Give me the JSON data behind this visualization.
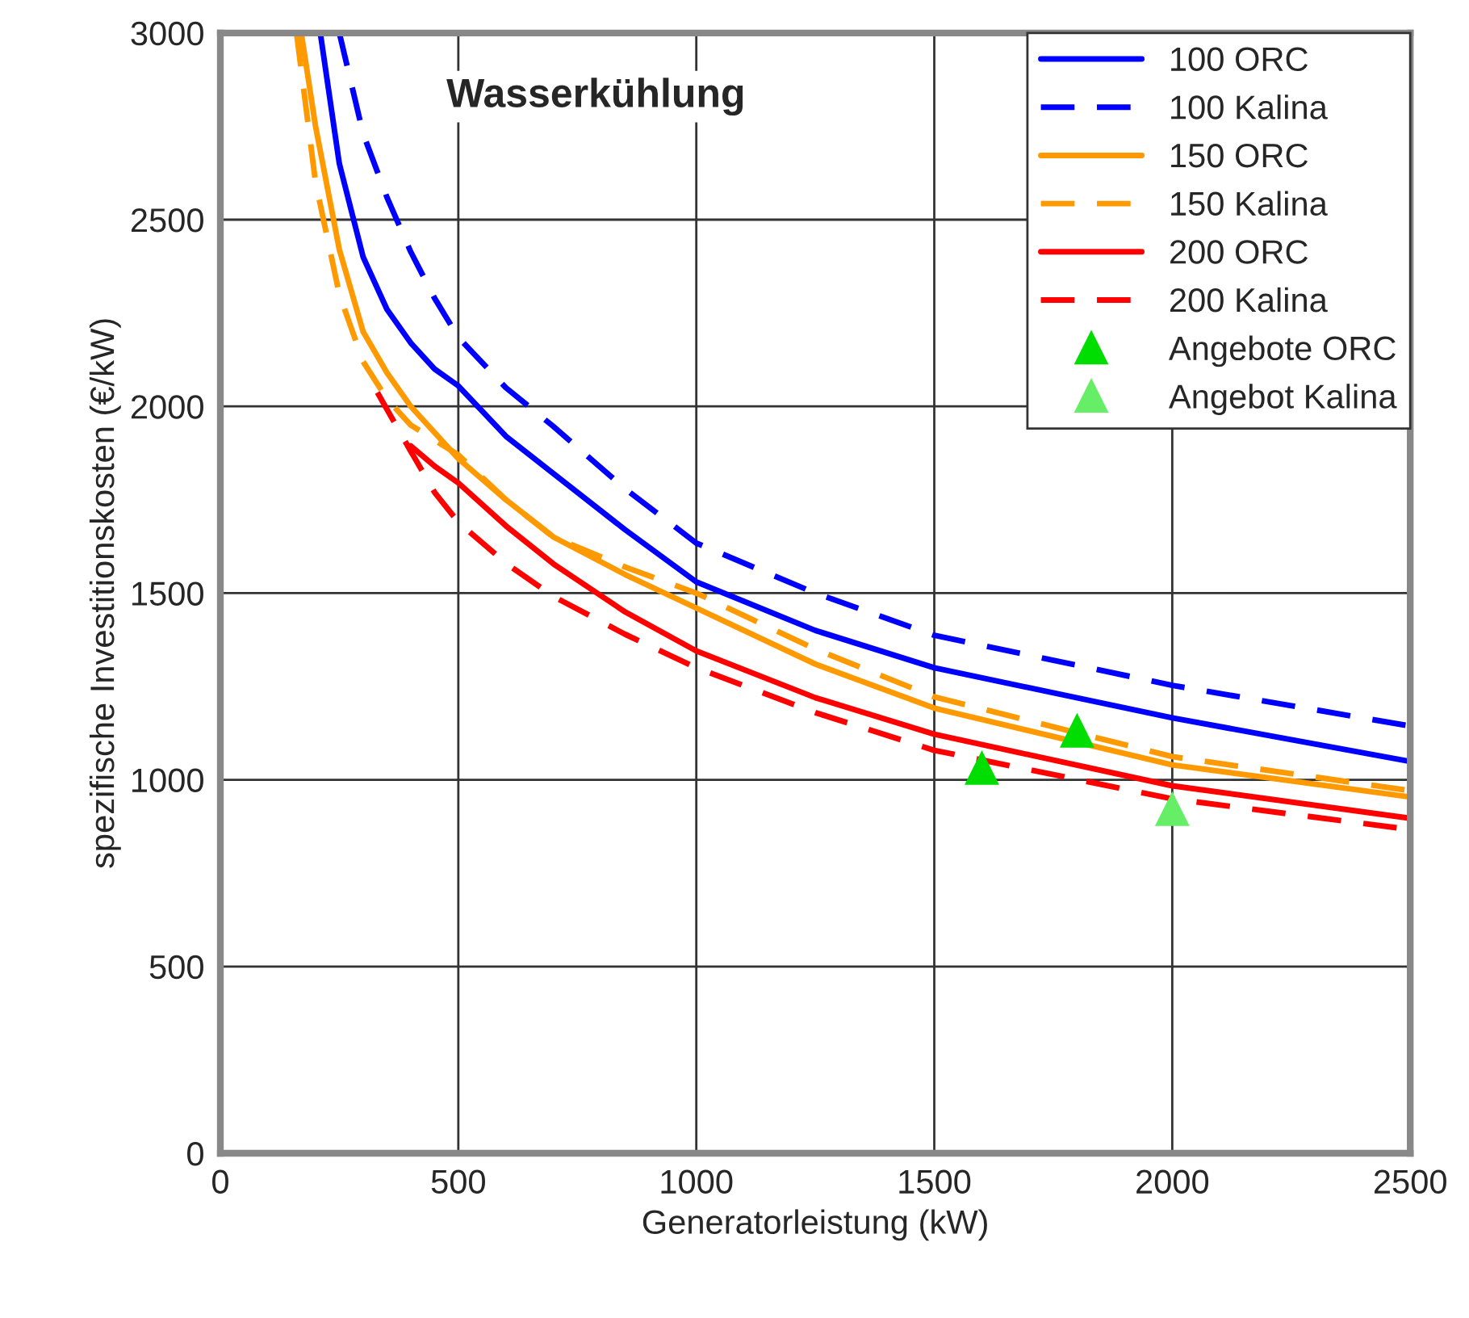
{
  "chart_data": {
    "type": "line",
    "xlabel": "Generatorleistung (kW)",
    "ylabel": "spezifische Investitionskosten (€/kW)",
    "annotations": [
      "Wasserkühlung"
    ],
    "xlim": [
      0,
      2500
    ],
    "ylim": [
      0,
      3000
    ],
    "xticks": [
      0,
      500,
      1000,
      1500,
      2000,
      2500
    ],
    "yticks": [
      0,
      500,
      1000,
      1500,
      2000,
      2500,
      3000
    ],
    "grid": true,
    "legend": "top right",
    "series": [
      {
        "name": "100 ORC",
        "color": "#0000ff",
        "line_style": "solid",
        "x": [
          210,
          250,
          300,
          350,
          400,
          450,
          500,
          600,
          700,
          850,
          1000,
          1250,
          1500,
          2000,
          2500
        ],
        "values": [
          3000,
          2650,
          2400,
          2260,
          2170,
          2100,
          2055,
          1920,
          1820,
          1670,
          1530,
          1400,
          1300,
          1166,
          1049
        ]
      },
      {
        "name": "100 Kalina",
        "color": "#0000ff",
        "line_style": "dashed",
        "x": [
          250,
          300,
          350,
          400,
          450,
          500,
          600,
          700,
          850,
          1000,
          1250,
          1500,
          2000,
          2500
        ],
        "values": [
          3000,
          2730,
          2560,
          2414,
          2290,
          2185,
          2050,
          1946,
          1780,
          1634,
          1500,
          1387,
          1253,
          1144
        ]
      },
      {
        "name": "150 ORC",
        "color": "#ff9900",
        "line_style": "solid",
        "x": [
          170,
          200,
          250,
          300,
          350,
          400,
          500,
          600,
          700,
          850,
          1000,
          1250,
          1500,
          2000,
          2500
        ],
        "values": [
          3000,
          2750,
          2420,
          2200,
          2090,
          2000,
          1860,
          1750,
          1650,
          1550,
          1460,
          1310,
          1192,
          1040,
          954
        ]
      },
      {
        "name": "150 Kalina",
        "color": "#ff9900",
        "line_style": "dashed",
        "x": [
          160,
          200,
          250,
          300,
          350,
          400,
          500,
          600,
          700,
          850,
          1000,
          1250,
          1500,
          2000,
          2500
        ],
        "values": [
          3000,
          2600,
          2300,
          2120,
          2020,
          1950,
          1870,
          1750,
          1650,
          1570,
          1500,
          1350,
          1222,
          1062,
          971
        ]
      },
      {
        "name": "200 ORC",
        "color": "#ff0000",
        "line_style": "solid",
        "x": [
          400,
          450,
          500,
          600,
          700,
          850,
          1000,
          1250,
          1500,
          2000,
          2500
        ],
        "values": [
          1894,
          1840,
          1795,
          1680,
          1578,
          1450,
          1345,
          1220,
          1122,
          984,
          897
        ]
      },
      {
        "name": "200 Kalina",
        "color": "#ff0000",
        "line_style": "dashed",
        "x": [
          330,
          400,
          450,
          500,
          600,
          700,
          850,
          1000,
          1250,
          1500,
          2000,
          2500
        ],
        "values": [
          2037,
          1880,
          1770,
          1690,
          1580,
          1491,
          1390,
          1300,
          1180,
          1079,
          949,
          867
        ]
      },
      {
        "name": "Angebote ORC",
        "type": "scatter",
        "marker": "triangle",
        "color": "#00dd00",
        "x": [
          1600,
          1800
        ],
        "values": [
          1030,
          1130
        ]
      },
      {
        "name": "Angebot Kalina",
        "type": "scatter",
        "marker": "triangle",
        "color": "#66ee66",
        "x": [
          2000
        ],
        "values": [
          920
        ]
      }
    ]
  }
}
